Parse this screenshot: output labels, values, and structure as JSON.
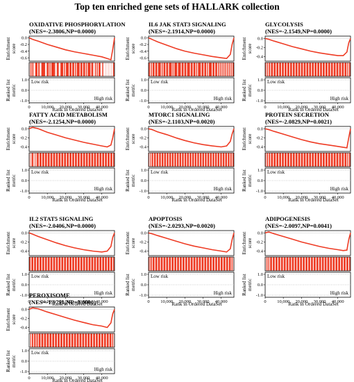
{
  "title": "Top ten enriched gene sets of HALLARK collection",
  "labels": {
    "enrichment_score": [
      "Enrichment",
      "score"
    ],
    "ranked_metric": [
      "Ranked list",
      "metric"
    ],
    "xlabel": "Rank in Ordered DataSet",
    "low_risk": "Low risk",
    "high_risk": "High risk"
  },
  "colors": {
    "curve": "#ee3b24",
    "hits": "#ee3b24",
    "axis": "#000000"
  },
  "chart_data": [
    {
      "type": "line",
      "title": "OXIDATIVE PHOSPHORYLATION",
      "subtitle": "(NES=-2.3806,NP=0.0000)",
      "x_ticks": [
        "0",
        "10,000",
        "20,000",
        "30,000",
        "40,000"
      ],
      "xlim": [
        0,
        47000
      ],
      "es_ticks": [
        "0.0",
        "-0.2",
        "-0.4",
        "-0.6"
      ],
      "es_ylim": [
        -0.7,
        0.05
      ],
      "metric_ticks": [
        "1.0",
        "0.0",
        "-1.0"
      ],
      "metric_ylim": [
        -1.2,
        1.2
      ],
      "x": [
        0,
        2000,
        5000,
        10000,
        15000,
        20000,
        25000,
        30000,
        35000,
        40000,
        43000,
        45000,
        46000,
        47000
      ],
      "es": [
        0,
        -0.05,
        -0.1,
        -0.2,
        -0.28,
        -0.36,
        -0.42,
        -0.47,
        -0.52,
        -0.57,
        -0.62,
        -0.66,
        -0.35,
        0
      ],
      "hits": [
        500,
        1500,
        2600,
        3100,
        4800,
        6000,
        6500,
        9000,
        9500,
        11000,
        12000,
        14500,
        15000,
        16500,
        17000,
        19000,
        20000,
        22000,
        23500,
        25000,
        26000,
        28000,
        29500,
        31000,
        32000,
        34000,
        35500,
        36000,
        37000,
        38000,
        39500,
        40000,
        41000,
        41500,
        42000,
        42500,
        43000,
        43500,
        44000,
        44500,
        45000,
        45500,
        46000
      ]
    },
    {
      "type": "line",
      "title": "IL6 JAK STAT3 SIGNALING",
      "subtitle": "(NES=-2.1914,NP=0.0000)",
      "x_ticks": [
        "0",
        "10,000",
        "20,000",
        "30,000",
        "40,000"
      ],
      "xlim": [
        0,
        47000
      ],
      "es_ticks": [
        "0.0",
        "-0.2",
        "-0.4",
        "-0.6"
      ],
      "es_ylim": [
        -0.7,
        0.05
      ],
      "metric_ticks": [
        "1.0",
        "0.0",
        "-1.0"
      ],
      "metric_ylim": [
        -1.2,
        1.2
      ],
      "x": [
        0,
        2000,
        5000,
        10000,
        15000,
        20000,
        25000,
        30000,
        35000,
        40000,
        43000,
        45000,
        46000,
        47000
      ],
      "es": [
        0,
        -0.05,
        -0.12,
        -0.22,
        -0.32,
        -0.4,
        -0.46,
        -0.51,
        -0.56,
        -0.6,
        -0.62,
        -0.5,
        -0.2,
        0
      ],
      "hits": [
        1000,
        2000,
        3500,
        5000,
        7000,
        8000,
        9500,
        11000,
        13000,
        14000,
        16000,
        18000,
        19500,
        21000,
        23000,
        24500,
        26000,
        27000,
        29000,
        30500,
        32000,
        33000,
        35000,
        36500,
        38000,
        39000,
        40000,
        41000,
        42000,
        43000,
        44000,
        45000,
        46000
      ]
    },
    {
      "type": "line",
      "title": "GLYCOLYSIS",
      "subtitle": "(NES=-2.1549,NP=0.0000)",
      "x_ticks": [
        "0",
        "10,000",
        "20,000",
        "30,000",
        "40,000"
      ],
      "xlim": [
        0,
        47000
      ],
      "es_ticks": [
        "0.0",
        "-0.2",
        "-0.4"
      ],
      "es_ylim": [
        -0.5,
        0.05
      ],
      "metric_ticks": [
        "1.0",
        "0.0",
        "-1.0"
      ],
      "metric_ylim": [
        -1.2,
        1.2
      ],
      "x": [
        0,
        2000,
        5000,
        10000,
        15000,
        20000,
        25000,
        30000,
        35000,
        40000,
        43000,
        45000,
        46000,
        47000
      ],
      "es": [
        0,
        -0.02,
        -0.06,
        -0.12,
        -0.18,
        -0.23,
        -0.28,
        -0.32,
        -0.35,
        -0.38,
        -0.38,
        -0.3,
        -0.1,
        0
      ],
      "hits": [
        800,
        1800,
        3000,
        4500,
        6000,
        7500,
        9000,
        10500,
        12000,
        13500,
        15000,
        16500,
        18000,
        19500,
        21000,
        22500,
        24000,
        25500,
        27000,
        28500,
        30000,
        31500,
        33000,
        34500,
        36000,
        37500,
        39000,
        40500,
        42000,
        43500,
        45000,
        46000
      ]
    },
    {
      "type": "line",
      "title": "FATTY ACID METABOLISM",
      "subtitle": "(NES=-2.1254,NP=0.0000)",
      "x_ticks": [
        "0",
        "10,000",
        "20,000",
        "30,000",
        "40,000"
      ],
      "xlim": [
        0,
        47000
      ],
      "es_ticks": [
        "0.0",
        "-0.2",
        "-0.4"
      ],
      "es_ylim": [
        -0.5,
        0.05
      ],
      "metric_ticks": [
        "1.0",
        "0.0",
        "-1.0"
      ],
      "metric_ylim": [
        -1.2,
        1.2
      ],
      "x": [
        0,
        2000,
        5000,
        10000,
        15000,
        20000,
        25000,
        30000,
        35000,
        40000,
        43000,
        45000,
        46000,
        47000
      ],
      "es": [
        0,
        0.03,
        0,
        -0.08,
        -0.14,
        -0.2,
        -0.25,
        -0.3,
        -0.34,
        -0.38,
        -0.4,
        -0.36,
        -0.2,
        0
      ],
      "hits": [
        500,
        1200,
        2500,
        3200,
        4000,
        5500,
        7000,
        8500,
        10000,
        11500,
        13000,
        14500,
        16000,
        17500,
        19000,
        20500,
        22000,
        23500,
        25000,
        26500,
        28000,
        29500,
        31000,
        32500,
        34000,
        35500,
        37000,
        38500,
        40000,
        41500,
        43000,
        44500,
        46000
      ]
    },
    {
      "type": "line",
      "title": "MTORC1 SIGNALING",
      "subtitle": "(NES=-2.1103,NP=0.0020)",
      "x_ticks": [
        "0",
        "10,000",
        "20,000",
        "30,000",
        "40,000"
      ],
      "xlim": [
        0,
        47000
      ],
      "es_ticks": [
        "0.0",
        "-0.2",
        "-0.4"
      ],
      "es_ylim": [
        -0.5,
        0.05
      ],
      "metric_ticks": [
        "1.0",
        "0.0",
        "-1.0"
      ],
      "metric_ylim": [
        -1.2,
        1.2
      ],
      "x": [
        0,
        2000,
        5000,
        10000,
        15000,
        20000,
        25000,
        30000,
        35000,
        40000,
        43000,
        45000,
        46000,
        47000
      ],
      "es": [
        0,
        -0.02,
        -0.07,
        -0.13,
        -0.2,
        -0.26,
        -0.31,
        -0.35,
        -0.38,
        -0.4,
        -0.38,
        -0.28,
        -0.12,
        0
      ],
      "hits": [
        600,
        1500,
        2800,
        4200,
        5600,
        7000,
        8400,
        9800,
        11200,
        12600,
        14000,
        15400,
        16800,
        18200,
        19600,
        21000,
        22400,
        23800,
        25200,
        26600,
        28000,
        29400,
        30800,
        32200,
        33600,
        35000,
        36400,
        37800,
        39200,
        40600,
        42000,
        43400,
        44800,
        46000
      ]
    },
    {
      "type": "line",
      "title": "PROTEIN SECRETION",
      "subtitle": "(NES=-2.0829,NP=0.0021)",
      "x_ticks": [
        "0",
        "10,000",
        "20,000",
        "30,000",
        "40,000"
      ],
      "xlim": [
        0,
        47000
      ],
      "es_ticks": [
        "0.0",
        "-0.2",
        "-0.4"
      ],
      "es_ylim": [
        -0.5,
        0.05
      ],
      "metric_ticks": [
        "1.0",
        "0.0",
        "-1.0"
      ],
      "metric_ylim": [
        -1.2,
        1.2
      ],
      "x": [
        0,
        2000,
        5000,
        10000,
        15000,
        20000,
        25000,
        30000,
        35000,
        40000,
        43000,
        45000,
        46000,
        47000
      ],
      "es": [
        0,
        -0.02,
        -0.06,
        -0.12,
        -0.18,
        -0.24,
        -0.29,
        -0.33,
        -0.36,
        -0.39,
        -0.41,
        -0.42,
        -0.2,
        0
      ],
      "hits": [
        700,
        1800,
        3000,
        4500,
        6000,
        7500,
        9000,
        10500,
        12000,
        13500,
        15000,
        16500,
        18000,
        19500,
        21000,
        22500,
        24000,
        25500,
        27000,
        28500,
        30000,
        31500,
        33000,
        34500,
        36000,
        37500,
        39000,
        40500,
        42000,
        43500,
        45000,
        46000
      ]
    },
    {
      "type": "line",
      "title": "IL2 STAT5 SIGNALING",
      "subtitle": "(NES=-2.0406,NP=0.0000)",
      "x_ticks": [
        "0",
        "10,000",
        "20,000",
        "30,000",
        "40,000"
      ],
      "xlim": [
        0,
        47000
      ],
      "es_ticks": [
        "0.0",
        "-0.2",
        "-0.4"
      ],
      "es_ylim": [
        -0.5,
        0.05
      ],
      "metric_ticks": [
        "1.0",
        "0.0",
        "-1.0"
      ],
      "metric_ylim": [
        -1.2,
        1.2
      ],
      "x": [
        0,
        2000,
        5000,
        10000,
        15000,
        20000,
        25000,
        30000,
        35000,
        40000,
        43000,
        45000,
        46000,
        47000
      ],
      "es": [
        0,
        -0.03,
        -0.08,
        -0.15,
        -0.22,
        -0.28,
        -0.33,
        -0.37,
        -0.4,
        -0.42,
        -0.4,
        -0.3,
        -0.1,
        0
      ],
      "hits": [
        1000,
        2500,
        4000,
        5500,
        7000,
        8500,
        10000,
        11500,
        13000,
        14500,
        16000,
        17500,
        19000,
        20500,
        22000,
        23500,
        25000,
        26500,
        28000,
        29500,
        31000,
        32500,
        34000,
        35500,
        37000,
        38500,
        40000,
        41500,
        43000,
        44500,
        46000
      ]
    },
    {
      "type": "line",
      "title": "APOPTOSIS",
      "subtitle": "(NES=-2.0293,NP=0.0020)",
      "x_ticks": [
        "0",
        "10,000",
        "20,000",
        "30,000",
        "40,000"
      ],
      "xlim": [
        0,
        47000
      ],
      "es_ticks": [
        "0.0",
        "-0.2",
        "-0.4"
      ],
      "es_ylim": [
        -0.5,
        0.05
      ],
      "metric_ticks": [
        "1.0",
        "0.0",
        "-1.0"
      ],
      "metric_ylim": [
        -1.2,
        1.2
      ],
      "x": [
        0,
        2000,
        5000,
        10000,
        15000,
        20000,
        25000,
        30000,
        35000,
        40000,
        43000,
        45000,
        46000,
        47000
      ],
      "es": [
        0,
        -0.02,
        -0.06,
        -0.12,
        -0.18,
        -0.24,
        -0.29,
        -0.33,
        -0.37,
        -0.4,
        -0.42,
        -0.35,
        -0.15,
        0
      ],
      "hits": [
        800,
        2000,
        3500,
        5000,
        6500,
        8000,
        9500,
        11000,
        12500,
        14000,
        15500,
        17000,
        18500,
        20000,
        21500,
        23000,
        24500,
        26000,
        27500,
        29000,
        30500,
        32000,
        33500,
        35000,
        36500,
        38000,
        39500,
        41000,
        42500,
        44000,
        45500,
        46500
      ]
    },
    {
      "type": "line",
      "title": "ADIPOGENESIS",
      "subtitle": "(NES=-2.0097,NP=0.0041)",
      "x_ticks": [
        "0",
        "10,000",
        "20,000",
        "30,000",
        "40,000"
      ],
      "xlim": [
        0,
        47000
      ],
      "es_ticks": [
        "0.0",
        "-0.2",
        "-0.4"
      ],
      "es_ylim": [
        -0.5,
        0.05
      ],
      "metric_ticks": [
        "1.0",
        "0.0",
        "-1.0"
      ],
      "metric_ylim": [
        -1.2,
        1.2
      ],
      "x": [
        0,
        2000,
        5000,
        10000,
        15000,
        20000,
        25000,
        30000,
        35000,
        40000,
        43000,
        45000,
        46000,
        47000
      ],
      "es": [
        0,
        0.02,
        -0.02,
        -0.08,
        -0.14,
        -0.2,
        -0.25,
        -0.3,
        -0.34,
        -0.37,
        -0.39,
        -0.38,
        -0.15,
        0
      ],
      "hits": [
        500,
        1500,
        2500,
        4000,
        5500,
        7000,
        8500,
        10000,
        11500,
        13000,
        14500,
        16000,
        17500,
        19000,
        20500,
        22000,
        23500,
        25000,
        26500,
        28000,
        29500,
        31000,
        32500,
        34000,
        35500,
        37000,
        38500,
        40000,
        41500,
        43000,
        44500,
        46000
      ]
    },
    {
      "type": "line",
      "title": "PEROXISOME",
      "subtitle": "(NES=-1.9791,NP=0.0000)",
      "x_ticks": [
        "0",
        "10,000",
        "20,000",
        "30,000",
        "40,000"
      ],
      "xlim": [
        0,
        47000
      ],
      "es_ticks": [
        "0.0",
        "-0.2",
        "-0.4"
      ],
      "es_ylim": [
        -0.5,
        0.05
      ],
      "metric_ticks": [
        "1.0",
        "0.0",
        "-1.0"
      ],
      "metric_ylim": [
        -1.2,
        1.2
      ],
      "x": [
        0,
        2000,
        5000,
        10000,
        15000,
        20000,
        25000,
        30000,
        35000,
        40000,
        43000,
        45000,
        46000,
        47000
      ],
      "es": [
        0,
        0.03,
        0.01,
        -0.06,
        -0.12,
        -0.18,
        -0.24,
        -0.29,
        -0.34,
        -0.37,
        -0.4,
        -0.3,
        -0.1,
        0
      ],
      "hits": [
        400,
        1300,
        2500,
        3800,
        5000,
        6500,
        8000,
        9500,
        11000,
        12500,
        14000,
        15500,
        17000,
        18500,
        20000,
        21500,
        23000,
        24500,
        26000,
        27500,
        29000,
        30500,
        32000,
        33500,
        35000,
        36500,
        38000,
        39500,
        41000,
        42500,
        44000,
        45500,
        46500
      ]
    }
  ]
}
